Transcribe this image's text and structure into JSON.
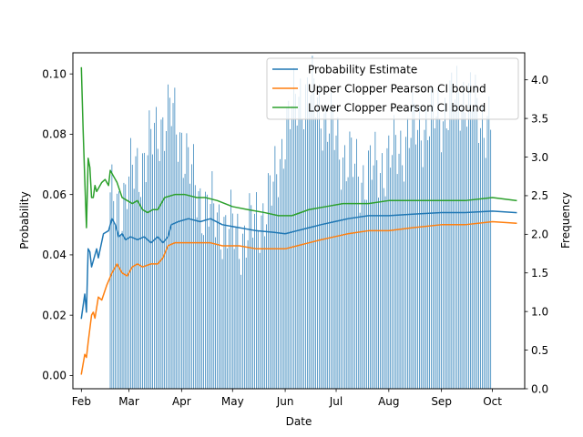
{
  "chart_data": {
    "type": "line",
    "xlabel": "Date",
    "ylabel_left": "Probability",
    "ylabel_right": "Frequency",
    "x_start": "2023-02-01",
    "x_end": "2023-10-15",
    "xlim": [
      "2023-01-27",
      "2023-10-20"
    ],
    "ylim_left": [
      -0.0044,
      0.107
    ],
    "ylim_right": [
      0.0,
      4.35
    ],
    "x_ticks": [
      {
        "date": "2023-02-01",
        "label": "Feb"
      },
      {
        "date": "2023-03-01",
        "label": "Mar"
      },
      {
        "date": "2023-04-01",
        "label": "Apr"
      },
      {
        "date": "2023-05-01",
        "label": "May"
      },
      {
        "date": "2023-06-01",
        "label": "Jun"
      },
      {
        "date": "2023-07-01",
        "label": "Jul"
      },
      {
        "date": "2023-08-01",
        "label": "Aug"
      },
      {
        "date": "2023-09-01",
        "label": "Sep"
      },
      {
        "date": "2023-10-01",
        "label": "Oct"
      }
    ],
    "y_ticks_left": [
      {
        "value": 0.0,
        "label": "0.00"
      },
      {
        "value": 0.02,
        "label": "0.02"
      },
      {
        "value": 0.04,
        "label": "0.04"
      },
      {
        "value": 0.06,
        "label": "0.06"
      },
      {
        "value": 0.08,
        "label": "0.08"
      },
      {
        "value": 0.1,
        "label": "0.10"
      }
    ],
    "y_ticks_right": [
      {
        "value": 0.0,
        "label": "0.0"
      },
      {
        "value": 0.5,
        "label": "0.5"
      },
      {
        "value": 1.0,
        "label": "1.0"
      },
      {
        "value": 1.5,
        "label": "1.5"
      },
      {
        "value": 2.0,
        "label": "2.0"
      },
      {
        "value": 2.5,
        "label": "2.5"
      },
      {
        "value": 3.0,
        "label": "3.0"
      },
      {
        "value": 3.5,
        "label": "3.5"
      },
      {
        "value": 4.0,
        "label": "4.0"
      }
    ],
    "legend_position": "top-right",
    "grid": false,
    "series": [
      {
        "name": "Probability Estimate",
        "color": "#1f77b4",
        "axis": "left",
        "points": [
          [
            "2023-02-01",
            0.019
          ],
          [
            "2023-02-03",
            0.027
          ],
          [
            "2023-02-04",
            0.021
          ],
          [
            "2023-02-05",
            0.042
          ],
          [
            "2023-02-06",
            0.041
          ],
          [
            "2023-02-07",
            0.036
          ],
          [
            "2023-02-10",
            0.042
          ],
          [
            "2023-02-11",
            0.039
          ],
          [
            "2023-02-14",
            0.047
          ],
          [
            "2023-02-17",
            0.048
          ],
          [
            "2023-02-19",
            0.052
          ],
          [
            "2023-02-21",
            0.05
          ],
          [
            "2023-02-23",
            0.046
          ],
          [
            "2023-02-25",
            0.047
          ],
          [
            "2023-02-27",
            0.045
          ],
          [
            "2023-03-02",
            0.046
          ],
          [
            "2023-03-06",
            0.045
          ],
          [
            "2023-03-10",
            0.046
          ],
          [
            "2023-03-14",
            0.044
          ],
          [
            "2023-03-18",
            0.046
          ],
          [
            "2023-03-21",
            0.044
          ],
          [
            "2023-03-24",
            0.046
          ],
          [
            "2023-03-26",
            0.05
          ],
          [
            "2023-03-30",
            0.051
          ],
          [
            "2023-04-05",
            0.052
          ],
          [
            "2023-04-12",
            0.051
          ],
          [
            "2023-04-18",
            0.052
          ],
          [
            "2023-04-25",
            0.05
          ],
          [
            "2023-05-05",
            0.049
          ],
          [
            "2023-05-15",
            0.048
          ],
          [
            "2023-05-25",
            0.0475
          ],
          [
            "2023-06-01",
            0.047
          ],
          [
            "2023-06-08",
            0.048
          ],
          [
            "2023-06-15",
            0.049
          ],
          [
            "2023-06-22",
            0.05
          ],
          [
            "2023-06-30",
            0.051
          ],
          [
            "2023-07-08",
            0.052
          ],
          [
            "2023-07-20",
            0.053
          ],
          [
            "2023-08-01",
            0.053
          ],
          [
            "2023-08-15",
            0.0535
          ],
          [
            "2023-09-01",
            0.054
          ],
          [
            "2023-09-15",
            0.054
          ],
          [
            "2023-10-01",
            0.0545
          ],
          [
            "2023-10-15",
            0.054
          ]
        ]
      },
      {
        "name": "Upper Clopper Pearson CI bound",
        "color": "#ff7f0e",
        "axis": "left",
        "points": [
          [
            "2023-02-01",
            0.0005
          ],
          [
            "2023-02-03",
            0.007
          ],
          [
            "2023-02-04",
            0.006
          ],
          [
            "2023-02-05",
            0.011
          ],
          [
            "2023-02-07",
            0.02
          ],
          [
            "2023-02-08",
            0.021
          ],
          [
            "2023-02-09",
            0.019
          ],
          [
            "2023-02-11",
            0.026
          ],
          [
            "2023-02-13",
            0.025
          ],
          [
            "2023-02-16",
            0.03
          ],
          [
            "2023-02-19",
            0.034
          ],
          [
            "2023-02-22",
            0.037
          ],
          [
            "2023-02-25",
            0.034
          ],
          [
            "2023-02-28",
            0.033
          ],
          [
            "2023-03-03",
            0.036
          ],
          [
            "2023-03-06",
            0.037
          ],
          [
            "2023-03-09",
            0.036
          ],
          [
            "2023-03-14",
            0.037
          ],
          [
            "2023-03-18",
            0.037
          ],
          [
            "2023-03-21",
            0.039
          ],
          [
            "2023-03-24",
            0.043
          ],
          [
            "2023-03-28",
            0.044
          ],
          [
            "2023-04-03",
            0.044
          ],
          [
            "2023-04-10",
            0.044
          ],
          [
            "2023-04-18",
            0.044
          ],
          [
            "2023-04-25",
            0.043
          ],
          [
            "2023-05-05",
            0.043
          ],
          [
            "2023-05-15",
            0.042
          ],
          [
            "2023-05-25",
            0.042
          ],
          [
            "2023-06-01",
            0.042
          ],
          [
            "2023-06-08",
            0.043
          ],
          [
            "2023-06-15",
            0.044
          ],
          [
            "2023-06-22",
            0.045
          ],
          [
            "2023-06-30",
            0.046
          ],
          [
            "2023-07-08",
            0.047
          ],
          [
            "2023-07-20",
            0.048
          ],
          [
            "2023-08-01",
            0.048
          ],
          [
            "2023-08-15",
            0.049
          ],
          [
            "2023-09-01",
            0.05
          ],
          [
            "2023-09-15",
            0.05
          ],
          [
            "2023-10-01",
            0.051
          ],
          [
            "2023-10-15",
            0.0505
          ]
        ]
      },
      {
        "name": "Lower Clopper Pearson CI bound",
        "color": "#2ca02c",
        "axis": "left",
        "points": [
          [
            "2023-02-01",
            0.102
          ],
          [
            "2023-02-02",
            0.082
          ],
          [
            "2023-02-03",
            0.065
          ],
          [
            "2023-02-04",
            0.049
          ],
          [
            "2023-02-05",
            0.072
          ],
          [
            "2023-02-06",
            0.069
          ],
          [
            "2023-02-07",
            0.059
          ],
          [
            "2023-02-08",
            0.059
          ],
          [
            "2023-02-09",
            0.063
          ],
          [
            "2023-02-10",
            0.061
          ],
          [
            "2023-02-13",
            0.064
          ],
          [
            "2023-02-15",
            0.065
          ],
          [
            "2023-02-17",
            0.063
          ],
          [
            "2023-02-18",
            0.068
          ],
          [
            "2023-02-20",
            0.066
          ],
          [
            "2023-02-22",
            0.064
          ],
          [
            "2023-02-25",
            0.059
          ],
          [
            "2023-02-28",
            0.058
          ],
          [
            "2023-03-03",
            0.057
          ],
          [
            "2023-03-06",
            0.058
          ],
          [
            "2023-03-09",
            0.055
          ],
          [
            "2023-03-12",
            0.054
          ],
          [
            "2023-03-15",
            0.055
          ],
          [
            "2023-03-18",
            0.055
          ],
          [
            "2023-03-22",
            0.059
          ],
          [
            "2023-03-28",
            0.06
          ],
          [
            "2023-04-03",
            0.06
          ],
          [
            "2023-04-10",
            0.059
          ],
          [
            "2023-04-15",
            0.059
          ],
          [
            "2023-04-22",
            0.058
          ],
          [
            "2023-05-01",
            0.056
          ],
          [
            "2023-05-10",
            0.055
          ],
          [
            "2023-05-20",
            0.054
          ],
          [
            "2023-05-28",
            0.053
          ],
          [
            "2023-06-05",
            0.053
          ],
          [
            "2023-06-15",
            0.055
          ],
          [
            "2023-06-25",
            0.056
          ],
          [
            "2023-07-05",
            0.057
          ],
          [
            "2023-07-20",
            0.057
          ],
          [
            "2023-08-01",
            0.058
          ],
          [
            "2023-08-15",
            0.058
          ],
          [
            "2023-09-01",
            0.058
          ],
          [
            "2023-09-15",
            0.058
          ],
          [
            "2023-10-01",
            0.059
          ],
          [
            "2023-10-15",
            0.058
          ]
        ]
      }
    ],
    "frequency_bars": {
      "color": "#1f77b4",
      "axis": "right",
      "start": "2023-02-18",
      "end": "2023-09-30",
      "keyframes": [
        [
          "2023-02-18",
          2.5
        ],
        [
          "2023-02-25",
          2.6
        ],
        [
          "2023-03-05",
          3.0
        ],
        [
          "2023-03-12",
          3.2
        ],
        [
          "2023-03-20",
          3.6
        ],
        [
          "2023-03-26",
          3.7
        ],
        [
          "2023-04-01",
          3.4
        ],
        [
          "2023-04-08",
          2.8
        ],
        [
          "2023-04-15",
          2.5
        ],
        [
          "2023-04-25",
          2.3
        ],
        [
          "2023-05-05",
          2.1
        ],
        [
          "2023-05-15",
          2.3
        ],
        [
          "2023-05-25",
          2.7
        ],
        [
          "2023-06-01",
          3.5
        ],
        [
          "2023-06-10",
          4.0
        ],
        [
          "2023-06-20",
          3.9
        ],
        [
          "2023-06-28",
          3.5
        ],
        [
          "2023-07-05",
          3.2
        ],
        [
          "2023-07-15",
          2.9
        ],
        [
          "2023-07-25",
          3.0
        ],
        [
          "2023-08-05",
          3.2
        ],
        [
          "2023-08-15",
          3.5
        ],
        [
          "2023-08-25",
          3.6
        ],
        [
          "2023-09-05",
          3.8
        ],
        [
          "2023-09-15",
          4.0
        ],
        [
          "2023-09-22",
          3.7
        ],
        [
          "2023-09-30",
          3.6
        ]
      ]
    }
  }
}
